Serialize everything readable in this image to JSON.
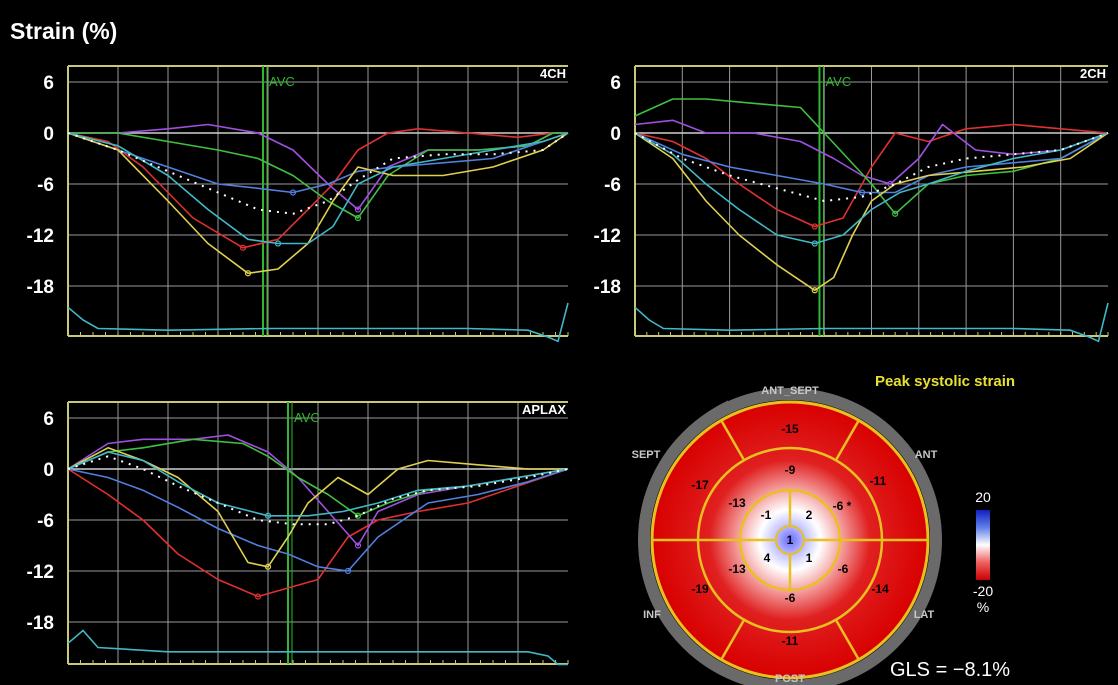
{
  "page": {
    "title": "Strain (%)"
  },
  "colors": {
    "background": "#000000",
    "axis": "#c8c878",
    "grid": "#9a9a9a",
    "zero_line": "#d0d0d0",
    "avc": "#2fb82f",
    "series": [
      "#e03030",
      "#a050e0",
      "#40c040",
      "#5080e0",
      "#e0d050",
      "#40b8c8",
      "#ffffff"
    ],
    "ecg": "#40b8c8"
  },
  "chart_data": [
    {
      "type": "line",
      "view_label": "4CH",
      "avc_label": "AVC",
      "yticks": [
        "6",
        "0",
        "-6",
        "-12",
        "-18"
      ],
      "ylim": [
        -23.5,
        8
      ],
      "xlim": [
        0,
        100
      ],
      "avc_x": 39,
      "series": [
        {
          "color": "#e03030",
          "x": [
            0,
            8,
            15,
            25,
            35,
            42,
            48,
            53,
            58,
            64,
            70,
            80,
            90,
            97,
            100
          ],
          "y": [
            0,
            -1,
            -4,
            -10,
            -13.5,
            -12.5,
            -9,
            -6,
            -2,
            0,
            0.5,
            0,
            -0.5,
            0,
            0
          ]
        },
        {
          "color": "#a050e0",
          "x": [
            0,
            10,
            20,
            28,
            38,
            45,
            52,
            58,
            64,
            72,
            82,
            92,
            97,
            100
          ],
          "y": [
            0,
            0,
            0.5,
            1,
            0,
            -2,
            -6,
            -9,
            -4,
            -2,
            -2,
            -1.5,
            0,
            0
          ]
        },
        {
          "color": "#40c040",
          "x": [
            0,
            10,
            20,
            30,
            38,
            45,
            52,
            58,
            64,
            72,
            82,
            92,
            97,
            100
          ],
          "y": [
            0,
            0,
            -1,
            -2,
            -3,
            -5,
            -8,
            -10,
            -5,
            -2,
            -2,
            -1.5,
            0,
            0
          ]
        },
        {
          "color": "#5080e0",
          "x": [
            0,
            10,
            20,
            30,
            38,
            45,
            52,
            58,
            65,
            75,
            85,
            95,
            100
          ],
          "y": [
            0,
            -2,
            -4,
            -6,
            -6.5,
            -7,
            -6,
            -4.5,
            -4,
            -3.5,
            -3,
            -1,
            0
          ]
        },
        {
          "color": "#e0d050",
          "x": [
            0,
            10,
            20,
            28,
            36,
            42,
            48,
            53,
            58,
            65,
            75,
            85,
            95,
            100
          ],
          "y": [
            0,
            -2,
            -8,
            -13,
            -16.5,
            -16,
            -13,
            -8,
            -4,
            -5,
            -5,
            -4,
            -2,
            0
          ]
        },
        {
          "color": "#40b8c8",
          "x": [
            0,
            10,
            20,
            28,
            36,
            42,
            48,
            53,
            58,
            65,
            75,
            85,
            95,
            100
          ],
          "y": [
            0,
            -1.5,
            -5,
            -9,
            -12.5,
            -13,
            -13,
            -11,
            -6,
            -4,
            -3,
            -2,
            -1,
            0
          ]
        },
        {
          "color": "#ffffff",
          "dash": true,
          "x": [
            0,
            10,
            20,
            30,
            38,
            45,
            52,
            58,
            65,
            75,
            85,
            95,
            100
          ],
          "y": [
            0,
            -2,
            -4.5,
            -7,
            -9,
            -9.5,
            -8,
            -5.5,
            -3,
            -2.5,
            -2.5,
            -2,
            0
          ]
        }
      ],
      "ecg": {
        "x": [
          0,
          3,
          6,
          20,
          40,
          60,
          80,
          92,
          96,
          98,
          100
        ],
        "y": [
          -20.5,
          -22,
          -23,
          -23.2,
          -23,
          -23,
          -23,
          -23.2,
          -24,
          -24.5,
          -20
        ]
      }
    },
    {
      "type": "line",
      "view_label": "2CH",
      "avc_label": "AVC",
      "yticks": [
        "6",
        "0",
        "-6",
        "-12",
        "-18"
      ],
      "ylim": [
        -23.5,
        8
      ],
      "xlim": [
        0,
        100
      ],
      "avc_x": 39,
      "series": [
        {
          "color": "#e03030",
          "x": [
            0,
            8,
            15,
            22,
            30,
            38,
            44,
            50,
            55,
            62,
            70,
            80,
            90,
            100
          ],
          "y": [
            0,
            -1,
            -3,
            -6,
            -9,
            -11,
            -10,
            -4,
            0,
            -1,
            0.5,
            1,
            0.5,
            0
          ]
        },
        {
          "color": "#a050e0",
          "x": [
            0,
            8,
            15,
            25,
            35,
            42,
            48,
            54,
            60,
            65,
            72,
            80,
            90,
            100
          ],
          "y": [
            1,
            1.5,
            0,
            0,
            -1,
            -3,
            -5,
            -6,
            -3,
            1,
            -2,
            -2.5,
            -2,
            0
          ]
        },
        {
          "color": "#40c040",
          "x": [
            0,
            8,
            15,
            25,
            35,
            40,
            45,
            50,
            55,
            62,
            70,
            80,
            90,
            100
          ],
          "y": [
            2,
            4,
            4,
            3.5,
            3,
            0,
            -3,
            -6,
            -9.5,
            -6,
            -5,
            -4.5,
            -3,
            0
          ]
        },
        {
          "color": "#5080e0",
          "x": [
            0,
            10,
            20,
            30,
            40,
            48,
            55,
            62,
            70,
            80,
            90,
            100
          ],
          "y": [
            0,
            -2.5,
            -4,
            -5,
            -6,
            -7,
            -7,
            -5,
            -4,
            -3.5,
            -3,
            0
          ]
        },
        {
          "color": "#e0d050",
          "x": [
            0,
            8,
            15,
            22,
            30,
            38,
            42,
            46,
            50,
            55,
            62,
            72,
            82,
            92,
            100
          ],
          "y": [
            0,
            -3,
            -8,
            -12,
            -15.5,
            -18.5,
            -17,
            -12,
            -8,
            -6,
            -5,
            -4.5,
            -4,
            -3,
            0
          ]
        },
        {
          "color": "#40b8c8",
          "x": [
            0,
            8,
            15,
            22,
            30,
            38,
            44,
            50,
            56,
            62,
            70,
            80,
            90,
            100
          ],
          "y": [
            0,
            -2.5,
            -6,
            -9,
            -12,
            -13,
            -12,
            -9,
            -7,
            -6,
            -4.5,
            -3,
            -2,
            0
          ]
        },
        {
          "color": "#ffffff",
          "dash": true,
          "x": [
            0,
            10,
            20,
            30,
            40,
            48,
            55,
            62,
            70,
            80,
            90,
            100
          ],
          "y": [
            0,
            -3,
            -5,
            -6.5,
            -8,
            -7.5,
            -6,
            -4,
            -3,
            -2.5,
            -2,
            0
          ]
        }
      ],
      "ecg": {
        "x": [
          0,
          3,
          6,
          20,
          40,
          60,
          80,
          92,
          96,
          98,
          100
        ],
        "y": [
          -20.5,
          -22,
          -23,
          -23.2,
          -23,
          -23,
          -23,
          -23.2,
          -24,
          -24.5,
          -20
        ]
      }
    },
    {
      "type": "line",
      "view_label": "APLAX",
      "avc_label": "AVC",
      "yticks": [
        "6",
        "0",
        "-6",
        "-12",
        "-18"
      ],
      "ylim": [
        -23.5,
        8
      ],
      "xlim": [
        0,
        100
      ],
      "avc_x": 44,
      "series": [
        {
          "color": "#e03030",
          "x": [
            0,
            8,
            15,
            22,
            30,
            38,
            44,
            50,
            56,
            62,
            70,
            80,
            90,
            100
          ],
          "y": [
            0,
            -3,
            -6,
            -10,
            -13,
            -15,
            -14,
            -13,
            -8,
            -6,
            -5,
            -4,
            -2,
            0
          ]
        },
        {
          "color": "#a050e0",
          "x": [
            0,
            8,
            15,
            25,
            32,
            40,
            46,
            52,
            58,
            62,
            70,
            80,
            90,
            100
          ],
          "y": [
            0,
            3,
            3.5,
            3.5,
            4,
            2,
            -1,
            -5,
            -9,
            -5,
            -3,
            -2,
            -1,
            0
          ]
        },
        {
          "color": "#40c040",
          "x": [
            0,
            8,
            15,
            25,
            35,
            40,
            46,
            52,
            58,
            64,
            72,
            80,
            90,
            100
          ],
          "y": [
            0,
            2,
            2.5,
            3.5,
            3,
            1.5,
            -1,
            -3,
            -5.5,
            -4,
            -2.5,
            -2,
            -1,
            0
          ]
        },
        {
          "color": "#5080e0",
          "x": [
            0,
            8,
            15,
            22,
            30,
            38,
            44,
            50,
            56,
            62,
            72,
            82,
            92,
            100
          ],
          "y": [
            0,
            -1,
            -2.5,
            -4.5,
            -7,
            -9,
            -10,
            -11.5,
            -12,
            -8,
            -4,
            -3,
            -1.5,
            0
          ]
        },
        {
          "color": "#e0d050",
          "x": [
            0,
            8,
            15,
            22,
            30,
            36,
            40,
            44,
            48,
            54,
            60,
            66,
            72,
            82,
            92,
            100
          ],
          "y": [
            0,
            2.5,
            1,
            -1,
            -5,
            -11,
            -11.5,
            -8,
            -4,
            -1,
            -3,
            0,
            1,
            0.5,
            0,
            0
          ]
        },
        {
          "color": "#40b8c8",
          "x": [
            0,
            8,
            15,
            22,
            30,
            40,
            48,
            55,
            62,
            70,
            80,
            90,
            100
          ],
          "y": [
            0,
            2,
            1,
            -1.5,
            -4,
            -5.5,
            -5.5,
            -5,
            -4,
            -2.5,
            -2,
            -1,
            0
          ]
        },
        {
          "color": "#ffffff",
          "dash": true,
          "x": [
            0,
            8,
            15,
            22,
            30,
            38,
            45,
            52,
            58,
            65,
            72,
            82,
            92,
            100
          ],
          "y": [
            0,
            1.5,
            0,
            -2,
            -4,
            -6,
            -6.5,
            -6.5,
            -5.5,
            -3.5,
            -2.5,
            -2,
            -1,
            0
          ]
        }
      ],
      "ecg": {
        "x": [
          0,
          3,
          6,
          20,
          40,
          60,
          80,
          92,
          96,
          98,
          100
        ],
        "y": [
          -20.5,
          -19,
          -21,
          -21.5,
          -21.5,
          -21.5,
          -21.5,
          -21.5,
          -22,
          -23,
          -23
        ]
      }
    }
  ],
  "bullseye": {
    "title": "Peak systolic strain",
    "labels": {
      "ant_sept": "ANT_SEPT",
      "sept": "SEPT",
      "ant": "ANT",
      "inf": "INF",
      "lat": "LAT",
      "post": "POST"
    },
    "segments": {
      "outer": {
        "ant_sept": "-15",
        "ant": "-11",
        "lat": "-14",
        "post": "-11",
        "inf": "-19",
        "sept": "-17"
      },
      "mid": {
        "ant_sept": "-9",
        "ant": "-6 *",
        "lat": "-6",
        "post": "-6",
        "inf": "-13",
        "sept": "-13"
      },
      "apical": {
        "top_left": "-1",
        "top_right": "2",
        "bottom_left": "4",
        "bottom_right": "1"
      },
      "apex": "1"
    },
    "colorbar": {
      "max_label": "20",
      "min_label": "-20",
      "unit": "%"
    },
    "gls": "GLS = −8.1%"
  }
}
